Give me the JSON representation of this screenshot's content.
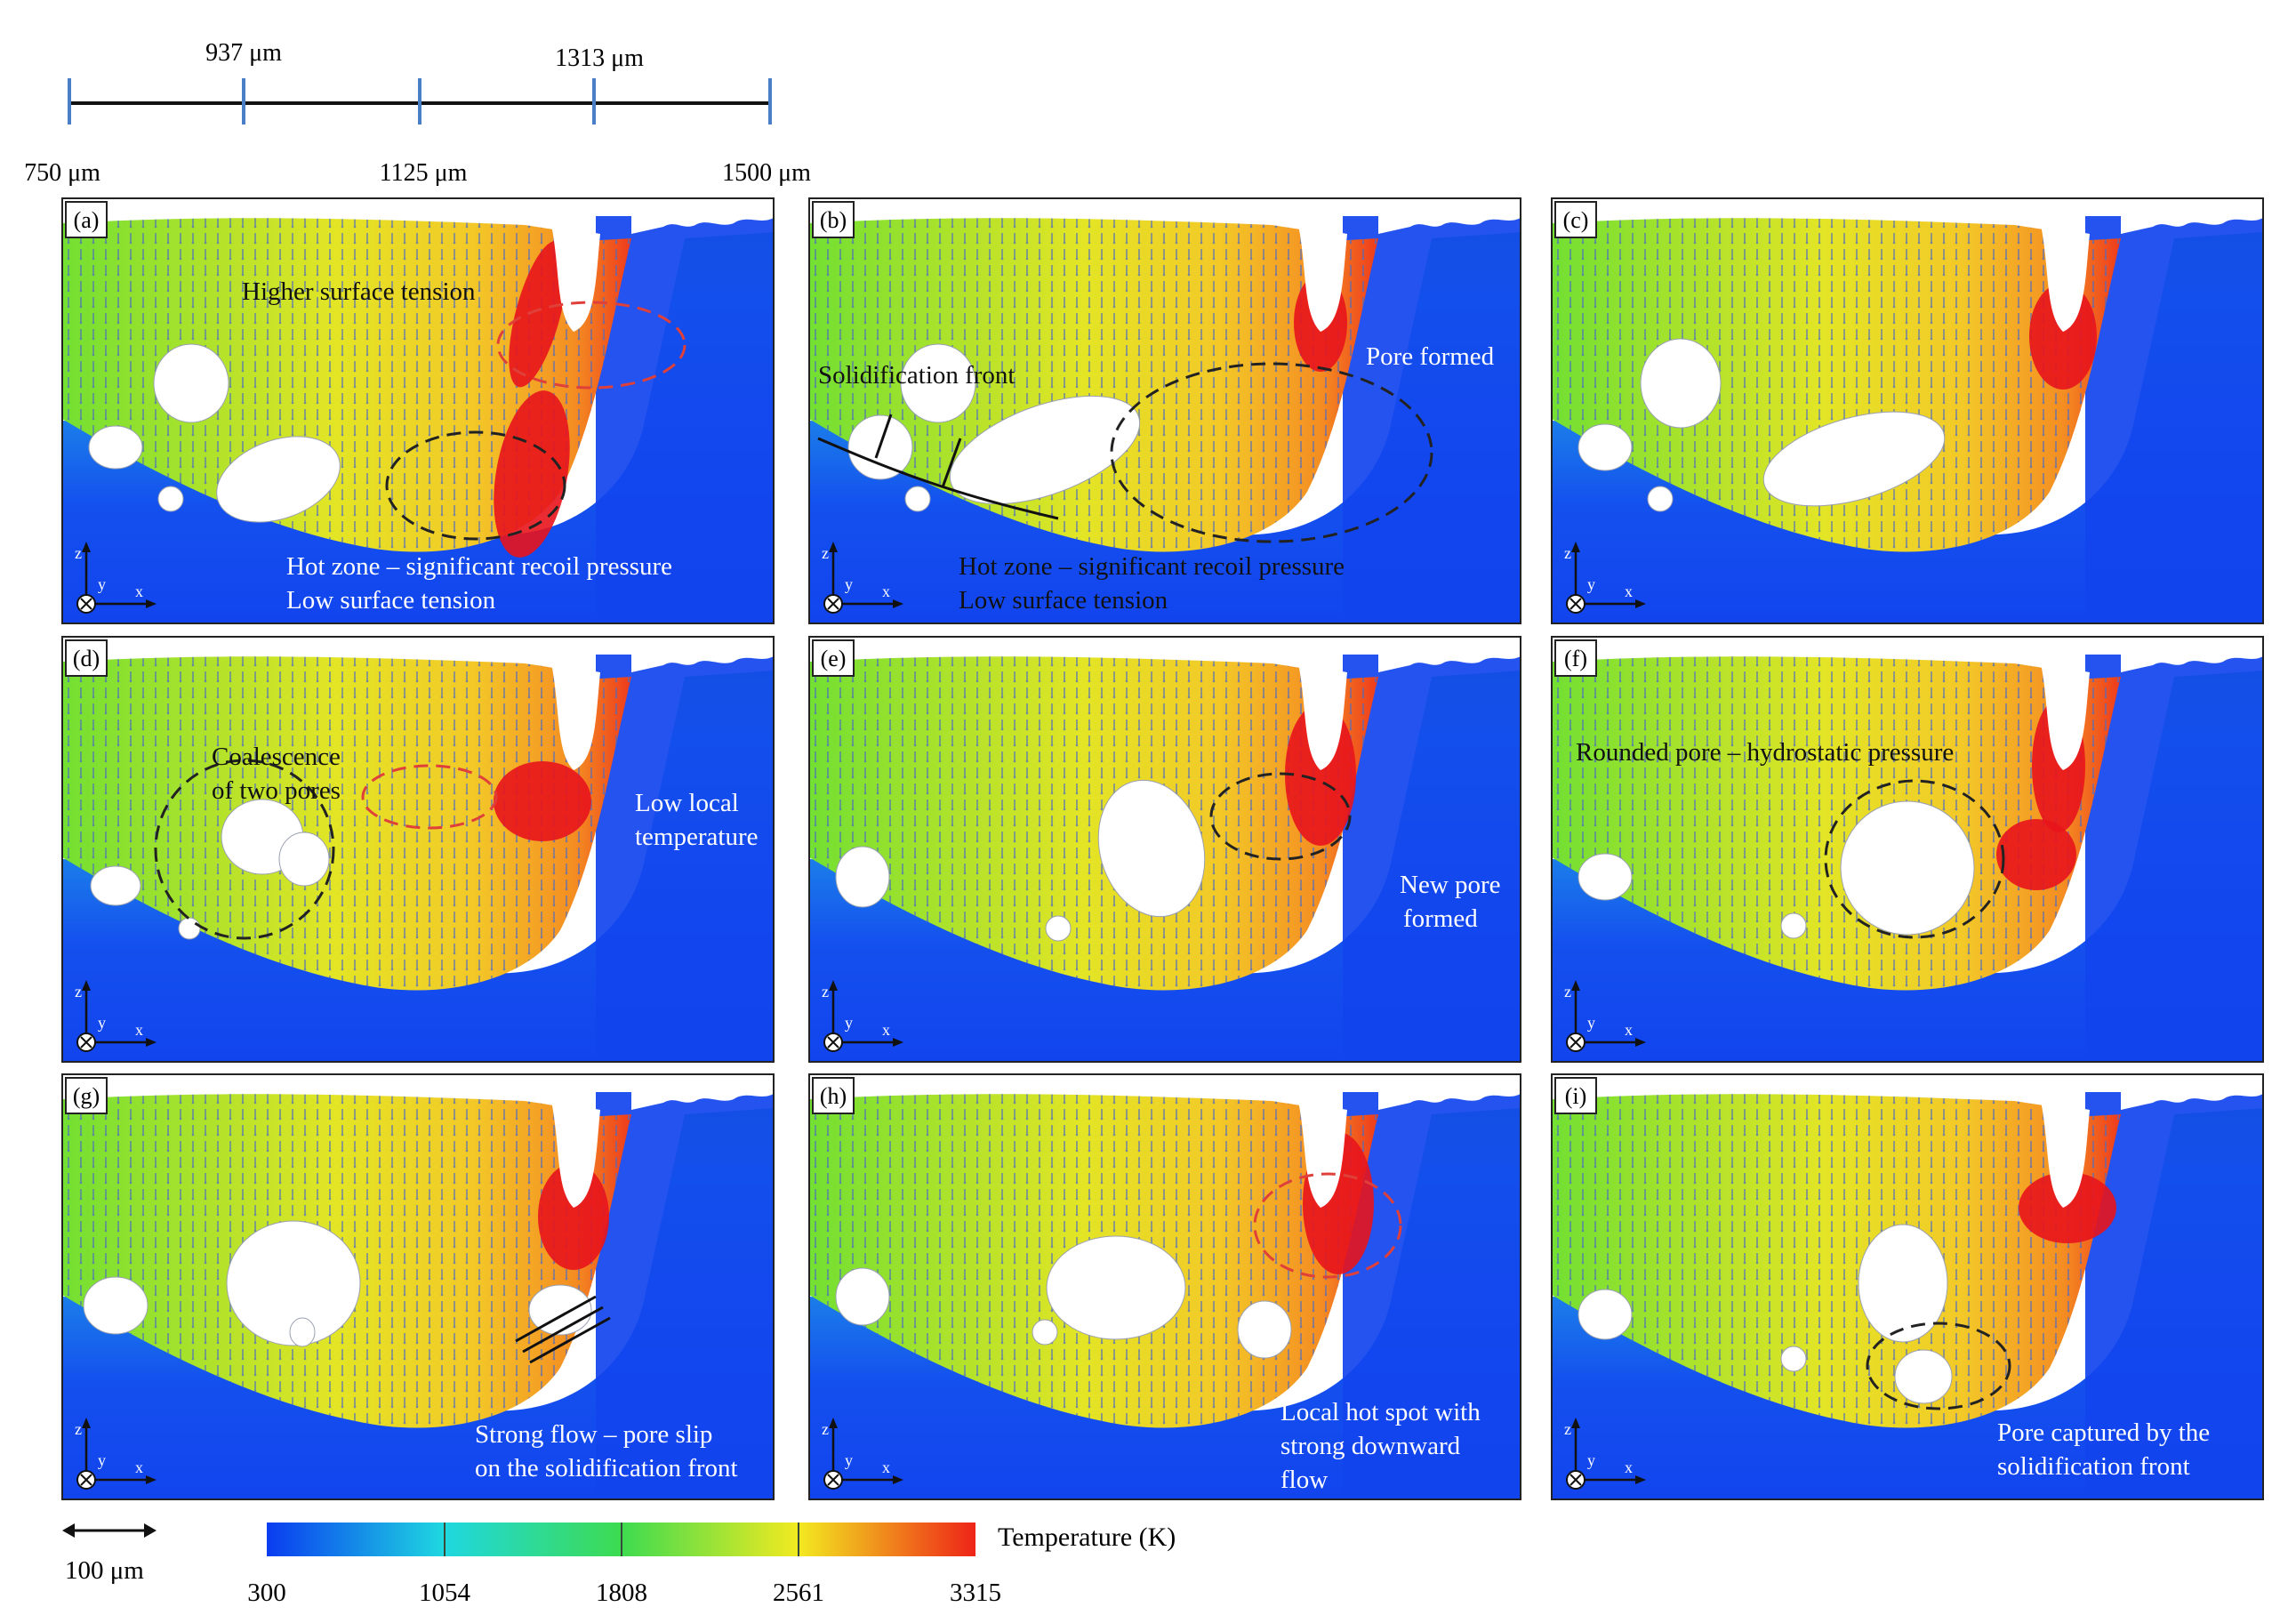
{
  "timeline": {
    "top_labels": [
      "937 μm",
      "1313 μm"
    ],
    "bottom_labels": [
      "750 μm",
      "1125 μm",
      "1500 μm"
    ]
  },
  "panels": [
    {
      "label": "(a)",
      "annotations": [
        "Higher surface tension",
        "Hot zone – significant recoil pressure",
        "Low surface tension"
      ]
    },
    {
      "label": "(b)",
      "annotations": [
        "Solidification front",
        "Pore formed",
        "Hot zone – significant recoil pressure",
        "Low surface tension"
      ]
    },
    {
      "label": "(c)",
      "annotations": []
    },
    {
      "label": "(d)",
      "annotations": [
        "Coalescence",
        "of two pores",
        "Low local",
        "temperature"
      ]
    },
    {
      "label": "(e)",
      "annotations": [
        "New pore",
        "formed"
      ]
    },
    {
      "label": "(f)",
      "annotations": [
        "Rounded pore – hydrostatic pressure"
      ]
    },
    {
      "label": "(g)",
      "annotations": [
        "Strong flow – pore slip",
        "on the solidification front"
      ]
    },
    {
      "label": "(h)",
      "annotations": [
        "Local hot spot with",
        "strong downward",
        "flow"
      ]
    },
    {
      "label": "(i)",
      "annotations": [
        "Pore captured by the",
        "solidification front"
      ]
    }
  ],
  "axes_labels": {
    "z": "z",
    "y": "y",
    "x": "x"
  },
  "scale_bar": {
    "label": "100 μm"
  },
  "colorbar": {
    "title": "Temperature (K)",
    "ticks": [
      "300",
      "1054",
      "1808",
      "2561",
      "3315"
    ],
    "colors": [
      "#0a3cf0",
      "#1fd8e0",
      "#3ddb50",
      "#f2ea20",
      "#ee2418"
    ]
  },
  "colors": {
    "substrate_blue": "#1244ee",
    "hot_red": "#e8141c",
    "vector_blue": "#4e6cc0",
    "ellipse_red": "#e0403a",
    "ellipse_black": "#222222"
  }
}
